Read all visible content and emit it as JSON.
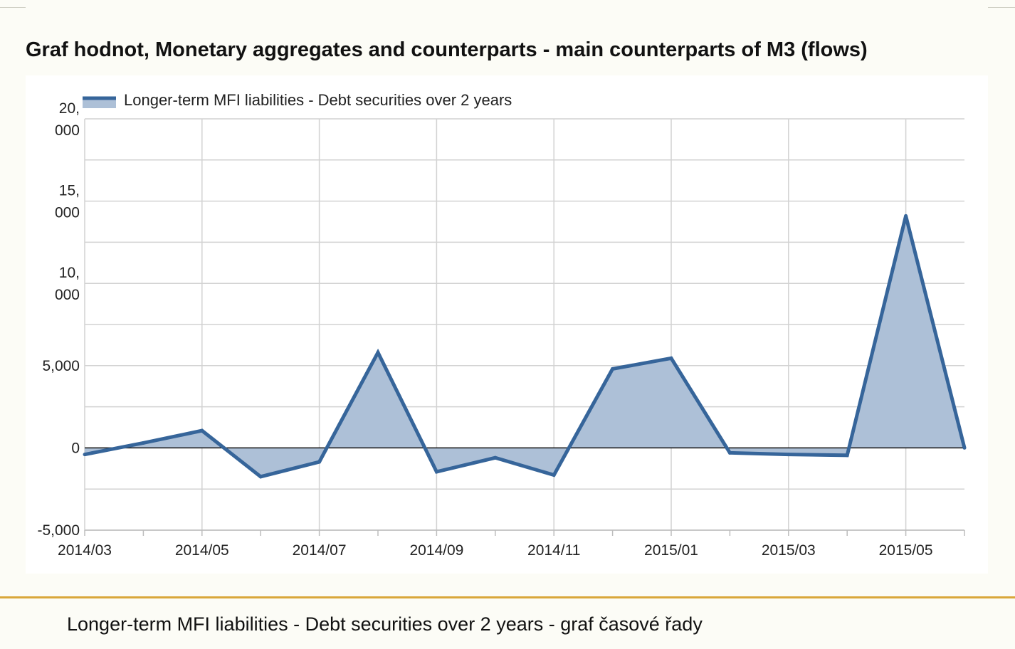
{
  "page": {
    "title": "Graf hodnot, Monetary aggregates and counterparts - main counterparts of M3 (flows)",
    "caption": "Longer-term MFI liabilities - Debt securities over 2 years - graf časové řady"
  },
  "colors": {
    "line": "#36659a",
    "fill": "#adc0d7",
    "grid": "#d2d2d2",
    "zero_line": "#111111",
    "footer_rule": "#d9a73a"
  },
  "chart_data": {
    "type": "area",
    "title": "",
    "xlabel": "",
    "ylabel": "",
    "x": [
      "2014/03",
      "2014/04",
      "2014/05",
      "2014/06",
      "2014/07",
      "2014/08",
      "2014/09",
      "2014/10",
      "2014/11",
      "2014/12",
      "2015/01",
      "2015/02",
      "2015/03",
      "2015/04",
      "2015/05",
      "2015/06"
    ],
    "series": [
      {
        "name": "Longer-term MFI liabilities - Debt securities over 2 years",
        "values": [
          -400,
          300,
          1050,
          -1750,
          -850,
          5800,
          -1450,
          -600,
          -1650,
          4800,
          5450,
          -300,
          -400,
          -450,
          14100,
          0
        ]
      }
    ],
    "ylim": [
      -5000,
      20000
    ],
    "yticks": [
      {
        "value": 20000,
        "label": [
          "20,",
          "000"
        ]
      },
      {
        "value": 15000,
        "label": [
          "15,",
          "000"
        ]
      },
      {
        "value": 10000,
        "label": [
          "10,",
          "000"
        ]
      },
      {
        "value": 5000,
        "label": [
          "5,000"
        ]
      },
      {
        "value": 0,
        "label": [
          "0"
        ]
      },
      {
        "value": -5000,
        "label": [
          "-5,000"
        ]
      }
    ],
    "xtick_labels": [
      "2014/03",
      "2014/05",
      "2014/07",
      "2014/09",
      "2014/11",
      "2015/01",
      "2015/03",
      "2015/05"
    ],
    "grid": true,
    "legend_position": "top-left"
  }
}
